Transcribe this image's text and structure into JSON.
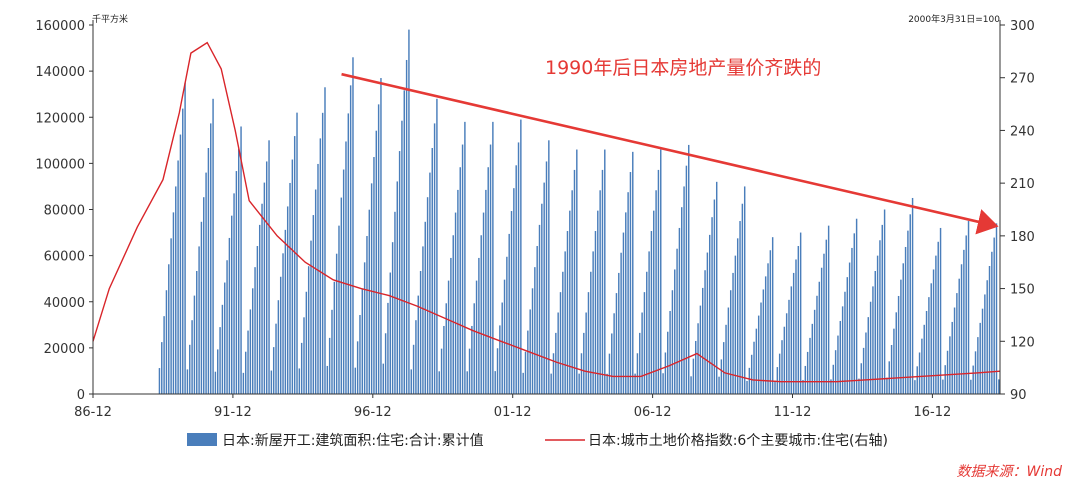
{
  "chart_data": {
    "type": "bar",
    "left_unit": "千平方米",
    "right_unit": "2000年3月31日=100",
    "annotation": "1990年后日本房地产量价齐跌的",
    "source": "数据来源：Wind",
    "x_axis": {
      "range": [
        1986.917,
        2019.333
      ],
      "tick_labels": [
        "86-12",
        "91-12",
        "96-12",
        "01-12",
        "06-12",
        "11-12",
        "16-12"
      ],
      "tick_positions": [
        1986.917,
        1991.917,
        1996.917,
        2001.917,
        2006.917,
        2011.917,
        2016.917
      ]
    },
    "y_left": {
      "range": [
        0,
        160000
      ],
      "ticks": [
        0,
        20000,
        40000,
        60000,
        80000,
        100000,
        120000,
        140000,
        160000
      ],
      "tick_labels": [
        "0",
        "20000",
        "40000",
        "60000",
        "80000",
        "100000",
        "120000",
        "140000",
        "160000"
      ]
    },
    "y_right": {
      "range": [
        90,
        300
      ],
      "ticks": [
        90,
        120,
        150,
        180,
        210,
        240,
        270,
        300
      ],
      "tick_labels": [
        "90",
        "120",
        "150",
        "180",
        "210",
        "240",
        "270",
        "300"
      ]
    },
    "grid": false,
    "legend_position": "bottom",
    "series": [
      {
        "name": "日本:新屋开工:建筑面积:住宅:合计:累计值",
        "type": "bar",
        "color": "#4a7ebb",
        "axis": "left",
        "data": "monthly cumulative values resetting each year; year totals listed",
        "year_start": 1989,
        "year_end_month": 3,
        "year_totals": [
          135000,
          128000,
          116000,
          110000,
          122000,
          133000,
          146000,
          137000,
          158000,
          128000,
          118000,
          118000,
          119000,
          110000,
          106000,
          106000,
          105000,
          106000,
          108000,
          92000,
          90000,
          68000,
          70000,
          73000,
          76000,
          80000,
          85000,
          72000,
          75000,
          74000,
          76000,
          73000,
          69000
        ],
        "last_year_value": 62000
      },
      {
        "name": "日本:城市土地价格指数:6个主要城市:住宅(右轴)",
        "type": "line",
        "color": "#d9252a",
        "axis": "right",
        "x": [
          1986.917,
          1987.5,
          1988.5,
          1989.417,
          1990.0,
          1990.417,
          1991.0,
          1991.5,
          1992.0,
          1992.5,
          1993.5,
          1994.5,
          1995.5,
          1996.5,
          1997.5,
          1998.5,
          1999.5,
          2000.5,
          2001.5,
          2002.5,
          2003.5,
          2004.5,
          2005.5,
          2006.5,
          2007.5,
          2008.5,
          2009.5,
          2010.5,
          2011.5,
          2012.5,
          2013.5,
          2014.5,
          2015.5,
          2016.5,
          2017.5,
          2018.5,
          2019.333
        ],
        "y": [
          120,
          150,
          185,
          212,
          250,
          284,
          290,
          275,
          240,
          200,
          180,
          165,
          155,
          150,
          146,
          140,
          133,
          126,
          120,
          114,
          108,
          103,
          100,
          100,
          106,
          113,
          102,
          98,
          97,
          97,
          97,
          98,
          99,
          100,
          101,
          102,
          103
        ]
      }
    ],
    "trend_arrow": {
      "color": "#e53935",
      "from": [
        1995.8,
        272
      ],
      "to": [
        2019.1,
        186
      ]
    }
  }
}
